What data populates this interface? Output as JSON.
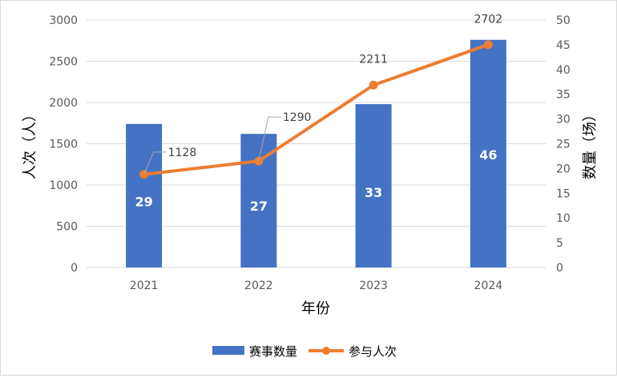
{
  "chart_data": {
    "type": "bar+line",
    "categories": [
      "2021",
      "2022",
      "2023",
      "2024"
    ],
    "series": [
      {
        "name": "赛事数量",
        "type": "bar",
        "axis": "right",
        "values": [
          29,
          27,
          33,
          46
        ],
        "color": "#4472C4"
      },
      {
        "name": "参与人次",
        "type": "line",
        "axis": "left",
        "values": [
          1128,
          1290,
          2211,
          2702
        ],
        "color": "#ED7D31"
      }
    ],
    "bar_labels": [
      "29",
      "27",
      "33",
      "46"
    ],
    "line_labels": [
      "1128",
      "1290",
      "2211",
      "2702"
    ],
    "xlabel": "年份",
    "ylabel_left": "人次（人）",
    "ylabel_right": "数量（场）",
    "ylim_left": [
      0,
      3000
    ],
    "ylim_right": [
      0,
      50
    ],
    "yticks_left": [
      "0",
      "500",
      "1000",
      "1500",
      "2000",
      "2500",
      "3000"
    ],
    "yticks_right": [
      "0",
      "5",
      "10",
      "15",
      "20",
      "25",
      "30",
      "35",
      "40",
      "45",
      "50"
    ],
    "grid": true,
    "legend_position": "bottom"
  }
}
